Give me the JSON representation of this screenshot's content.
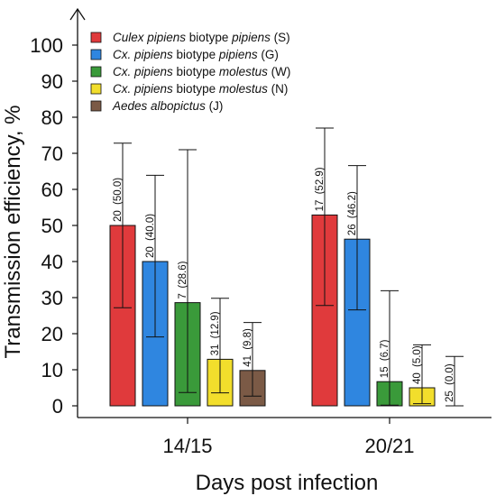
{
  "chart_data": {
    "type": "bar",
    "ylabel": "Transmission efficiency, %",
    "xlabel": "Days post infection",
    "ylim": [
      0,
      100
    ],
    "yticks": [
      0,
      10,
      20,
      30,
      40,
      50,
      60,
      70,
      80,
      90,
      100
    ],
    "grid": false,
    "legend_position": "top-left",
    "categories": [
      "14/15",
      "20/21"
    ],
    "series": [
      {
        "legend": [
          {
            "text": "Culex pipiens",
            "italic": true
          },
          {
            "text": " biotype ",
            "italic": false
          },
          {
            "text": "pipiens",
            "italic": true
          },
          {
            "text": " (S)",
            "italic": false
          }
        ],
        "color": "#e03a3c",
        "values": [
          50.0,
          52.9
        ],
        "error_low": [
          27.2,
          27.8
        ],
        "error_high": [
          72.8,
          77.0
        ],
        "n": [
          "20",
          "17"
        ],
        "value_labels": [
          "(50.0)",
          "(52.9)"
        ]
      },
      {
        "legend": [
          {
            "text": "Cx. pipiens",
            "italic": true
          },
          {
            "text": " biotype ",
            "italic": false
          },
          {
            "text": "pipiens",
            "italic": true
          },
          {
            "text": " (G)",
            "italic": false
          }
        ],
        "color": "#2f86e0",
        "values": [
          40.0,
          46.2
        ],
        "error_low": [
          19.1,
          26.6
        ],
        "error_high": [
          63.9,
          66.6
        ],
        "n": [
          "20",
          "26"
        ],
        "value_labels": [
          "(40.0)",
          "(46.2)"
        ]
      },
      {
        "legend": [
          {
            "text": "Cx. pipiens",
            "italic": true
          },
          {
            "text": " biotype ",
            "italic": false
          },
          {
            "text": "molestus",
            "italic": true
          },
          {
            "text": " (W)",
            "italic": false
          }
        ],
        "color": "#3a9a3a",
        "values": [
          28.6,
          6.7
        ],
        "error_low": [
          3.7,
          0.2
        ],
        "error_high": [
          71.0,
          31.9
        ],
        "n": [
          "7",
          "15"
        ],
        "value_labels": [
          "(28.6)",
          "(6.7)"
        ]
      },
      {
        "legend": [
          {
            "text": "Cx. pipiens",
            "italic": true
          },
          {
            "text": " biotype ",
            "italic": false
          },
          {
            "text": "molestus",
            "italic": true
          },
          {
            "text": " (N)",
            "italic": false
          }
        ],
        "color": "#f2de2c",
        "values": [
          12.9,
          5.0
        ],
        "error_low": [
          3.6,
          0.6
        ],
        "error_high": [
          29.8,
          16.9
        ],
        "n": [
          "31",
          "40"
        ],
        "value_labels": [
          "(12.9)",
          "(5.0)"
        ]
      },
      {
        "legend": [
          {
            "text": "Aedes albopictus",
            "italic": true
          },
          {
            "text": " (J)",
            "italic": false
          }
        ],
        "color": "#7b5a46",
        "values": [
          9.8,
          0.0
        ],
        "error_low": [
          2.7,
          0.0
        ],
        "error_high": [
          23.1,
          13.7
        ],
        "n": [
          "41",
          "25"
        ],
        "value_labels": [
          "(9.8)",
          "(0.0)"
        ]
      }
    ]
  }
}
